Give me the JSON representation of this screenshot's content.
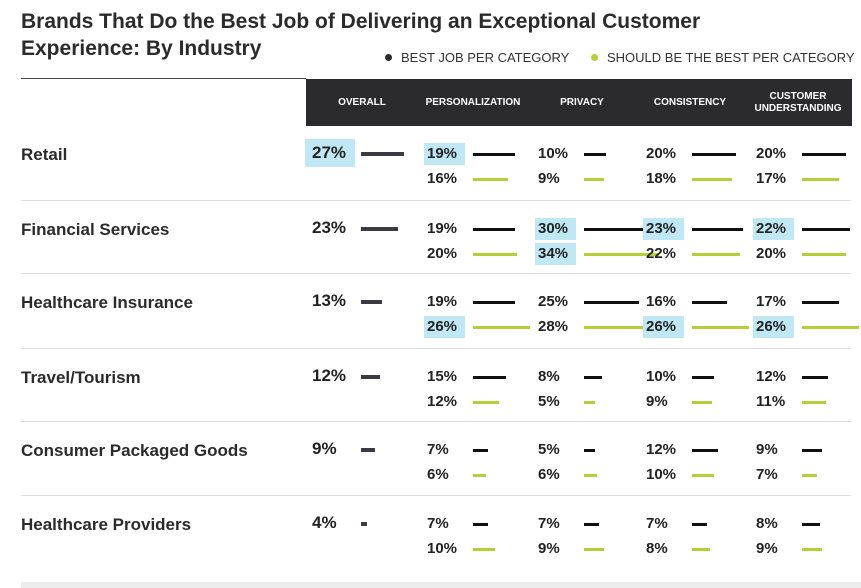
{
  "title": "Brands That Do the Best Job of Delivering an Exceptional Customer Experience: By Industry",
  "legend": [
    {
      "label": "BEST JOB PER CATEGORY",
      "color": "#2b2b2b"
    },
    {
      "label": "SHOULD BE THE BEST PER CATEGORY",
      "color": "#b5cf36"
    }
  ],
  "colors": {
    "header_bg": "#2b2b2f",
    "best_bar": "#111111",
    "should_bar": "#b5cf36",
    "highlight": "#bfe7f4",
    "overall_bar": "#3a3b42"
  },
  "chart_data": {
    "type": "table",
    "title": "Brands That Do the Best Job of Delivering an Exceptional Customer Experience: By Industry",
    "columns": [
      "OVERALL",
      "PERSONALIZATION",
      "PRIVACY",
      "CONSISTENCY",
      "CUSTOMER UNDERSTANDING"
    ],
    "series_names": [
      "BEST JOB PER CATEGORY",
      "SHOULD BE THE BEST PER CATEGORY"
    ],
    "rows": [
      {
        "industry": "Retail",
        "overall": 27,
        "overall_highlight": true,
        "cells": [
          {
            "best": 19,
            "should": 16,
            "hl_best": true,
            "hl_should": false
          },
          {
            "best": 10,
            "should": 9,
            "hl_best": false,
            "hl_should": false
          },
          {
            "best": 20,
            "should": 18,
            "hl_best": false,
            "hl_should": false
          },
          {
            "best": 20,
            "should": 17,
            "hl_best": false,
            "hl_should": false
          }
        ]
      },
      {
        "industry": "Financial Services",
        "overall": 23,
        "overall_highlight": false,
        "cells": [
          {
            "best": 19,
            "should": 20,
            "hl_best": false,
            "hl_should": false
          },
          {
            "best": 30,
            "should": 34,
            "hl_best": true,
            "hl_should": true
          },
          {
            "best": 23,
            "should": 22,
            "hl_best": true,
            "hl_should": false
          },
          {
            "best": 22,
            "should": 20,
            "hl_best": true,
            "hl_should": false
          }
        ]
      },
      {
        "industry": "Healthcare Insurance",
        "overall": 13,
        "overall_highlight": false,
        "cells": [
          {
            "best": 19,
            "should": 26,
            "hl_best": false,
            "hl_should": true
          },
          {
            "best": 25,
            "should": 28,
            "hl_best": false,
            "hl_should": false
          },
          {
            "best": 16,
            "should": 26,
            "hl_best": false,
            "hl_should": true
          },
          {
            "best": 17,
            "should": 26,
            "hl_best": false,
            "hl_should": true
          }
        ]
      },
      {
        "industry": "Travel/Tourism",
        "overall": 12,
        "overall_highlight": false,
        "cells": [
          {
            "best": 15,
            "should": 12,
            "hl_best": false,
            "hl_should": false
          },
          {
            "best": 8,
            "should": 5,
            "hl_best": false,
            "hl_should": false
          },
          {
            "best": 10,
            "should": 9,
            "hl_best": false,
            "hl_should": false
          },
          {
            "best": 12,
            "should": 11,
            "hl_best": false,
            "hl_should": false
          }
        ]
      },
      {
        "industry": "Consumer Packaged Goods",
        "overall": 9,
        "overall_highlight": false,
        "cells": [
          {
            "best": 7,
            "should": 6,
            "hl_best": false,
            "hl_should": false
          },
          {
            "best": 5,
            "should": 6,
            "hl_best": false,
            "hl_should": false
          },
          {
            "best": 12,
            "should": 10,
            "hl_best": false,
            "hl_should": false
          },
          {
            "best": 9,
            "should": 7,
            "hl_best": false,
            "hl_should": false
          }
        ]
      },
      {
        "industry": "Healthcare Providers",
        "overall": 4,
        "overall_highlight": false,
        "cells": [
          {
            "best": 7,
            "should": 10,
            "hl_best": false,
            "hl_should": false
          },
          {
            "best": 7,
            "should": 9,
            "hl_best": false,
            "hl_should": false
          },
          {
            "best": 7,
            "should": 8,
            "hl_best": false,
            "hl_should": false
          },
          {
            "best": 8,
            "should": 9,
            "hl_best": false,
            "hl_should": false
          }
        ]
      }
    ],
    "unit": "%"
  }
}
